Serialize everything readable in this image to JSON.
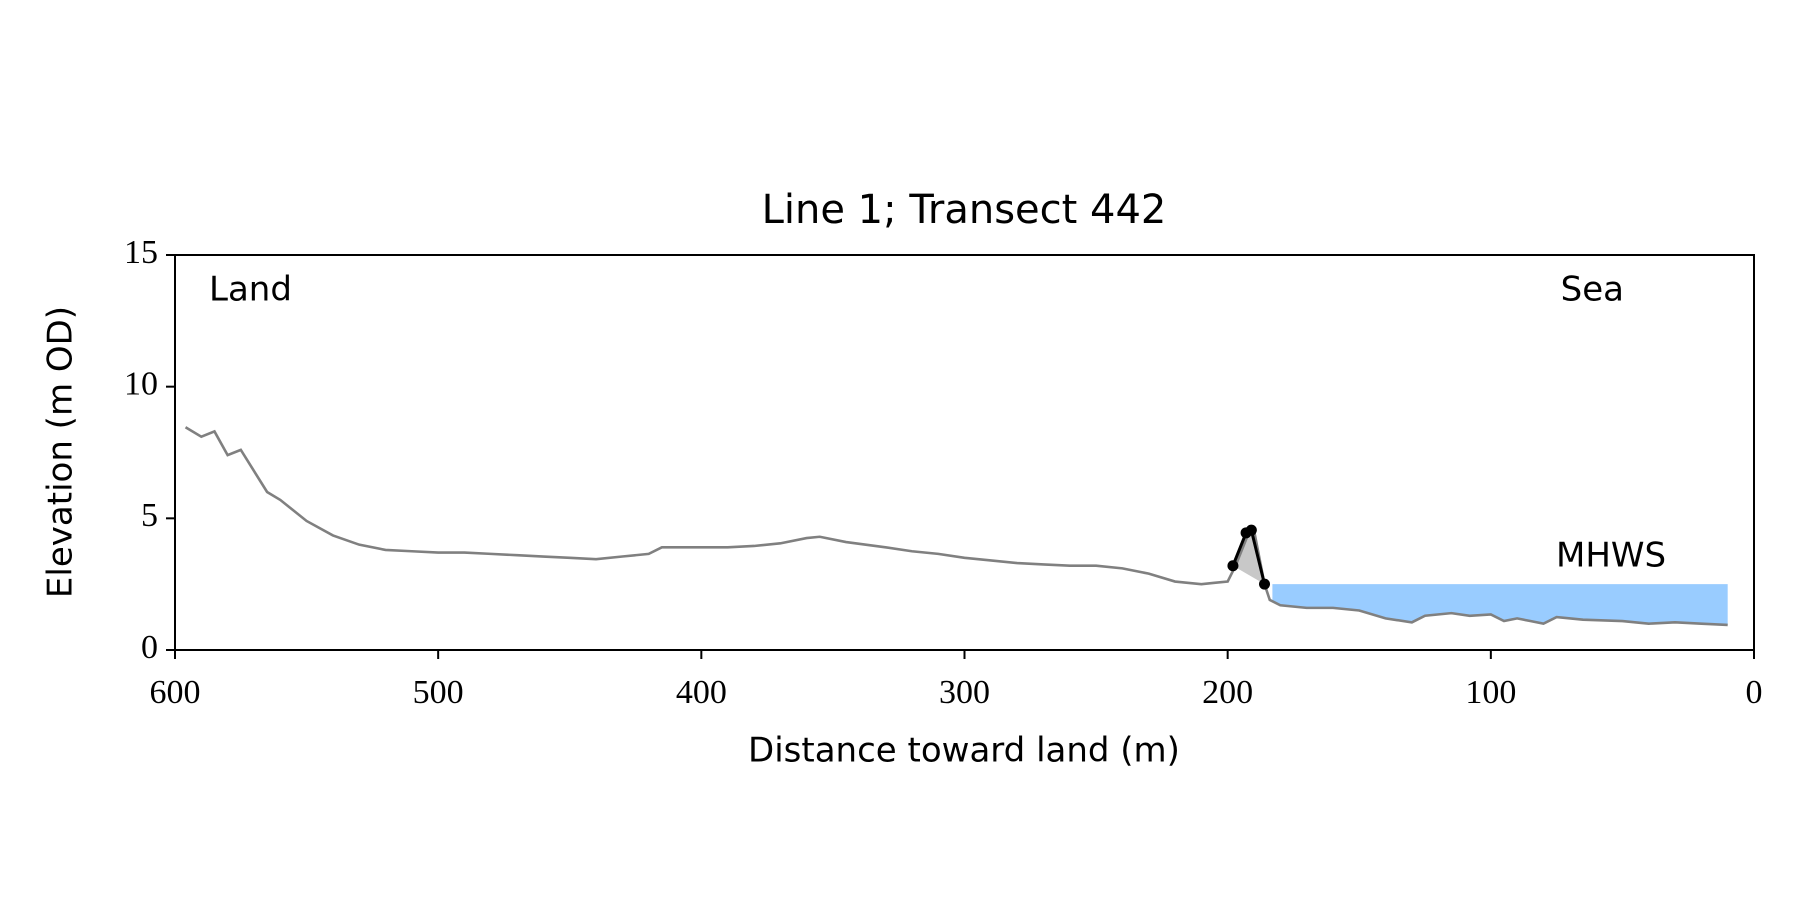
{
  "chart_data": {
    "type": "line",
    "title": "Line 1; Transect 442",
    "x_label": "Distance toward land (m)",
    "y_label": "Elevation (m OD)",
    "annotations": [
      "Land",
      "Sea"
    ],
    "xlim": [
      600,
      0
    ],
    "ylim": [
      0,
      15
    ],
    "xticks": [
      600,
      500,
      400,
      300,
      200,
      100,
      0
    ],
    "yticks": [
      0,
      5,
      10,
      15
    ],
    "profile": {
      "color": "#808080",
      "x": [
        596,
        590,
        585,
        580,
        575,
        570,
        565,
        560,
        550,
        540,
        530,
        520,
        510,
        500,
        490,
        480,
        470,
        460,
        450,
        440,
        430,
        420,
        415,
        400,
        390,
        380,
        370,
        360,
        355,
        345,
        330,
        320,
        310,
        300,
        290,
        280,
        270,
        260,
        250,
        240,
        230,
        220,
        210,
        205,
        200,
        197,
        192,
        190,
        186,
        184,
        180,
        170,
        160,
        150,
        140,
        130,
        125,
        115,
        108,
        100,
        95,
        90,
        85,
        80,
        75,
        65,
        50,
        40,
        30,
        20,
        10
      ],
      "y": [
        8.46,
        8.1,
        8.3,
        7.4,
        7.6,
        6.8,
        6.0,
        5.7,
        4.9,
        4.35,
        4.0,
        3.8,
        3.75,
        3.7,
        3.7,
        3.65,
        3.6,
        3.55,
        3.5,
        3.45,
        3.55,
        3.65,
        3.9,
        3.9,
        3.9,
        3.95,
        4.05,
        4.25,
        4.3,
        4.1,
        3.9,
        3.75,
        3.65,
        3.5,
        3.4,
        3.3,
        3.25,
        3.2,
        3.2,
        3.1,
        2.9,
        2.6,
        2.5,
        2.55,
        2.6,
        3.2,
        4.45,
        4.55,
        2.5,
        1.9,
        1.7,
        1.6,
        1.6,
        1.5,
        1.2,
        1.05,
        1.3,
        1.4,
        1.3,
        1.35,
        1.1,
        1.2,
        1.1,
        1.0,
        1.25,
        1.15,
        1.1,
        1.0,
        1.05,
        1.0,
        0.95
      ]
    },
    "dune": {
      "color": "#000000",
      "fill": "#c8c8c8",
      "x": [
        198,
        193,
        191,
        186
      ],
      "y": [
        3.2,
        4.45,
        4.55,
        2.5
      ]
    },
    "mhws": {
      "label": "MHWS",
      "value": 2.5,
      "x_range": [
        183,
        10
      ],
      "color": "#99ccff",
      "label_color": "#6699cc"
    }
  }
}
